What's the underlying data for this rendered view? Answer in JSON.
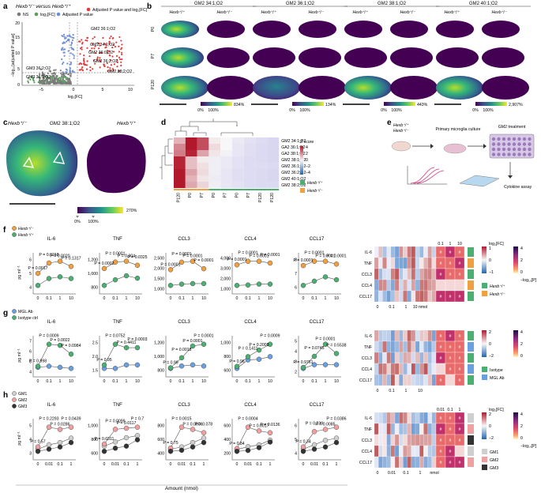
{
  "panel_letters": [
    "a",
    "b",
    "c",
    "d",
    "e",
    "f",
    "g",
    "h"
  ],
  "panel_a": {
    "title": "Hexb⁺/⁻ versus Hexb⁺/⁺",
    "legend": [
      "NS",
      "log₂[FC]",
      "Adjusted P value",
      "Adjusted P value and log₂[FC]"
    ],
    "ylabel": "−log₁₀[adjusted P value]",
    "xlabel": "log₂[FC]",
    "x_ticks": [
      "−5",
      "0",
      "5",
      "10"
    ],
    "y_ticks": [
      "0",
      "5",
      "10",
      "15",
      "20"
    ],
    "annotations": [
      "GM2 36:1;O2",
      "GM2 34:1;O2",
      "GM2 36:0;O2",
      "GM2 36:2;O2",
      "GM2 38:2;O2",
      "GM3 36:2;O2",
      "GM3 36:1;O2"
    ],
    "colors": {
      "ns": "#7a7a7a",
      "fc": "#5aa05a",
      "p": "#6d8fd6",
      "both": "#e03c3c"
    }
  },
  "panel_b": {
    "columns": [
      "GM2 34:1;O2",
      "GM2 36:1;O2",
      "GM2 38:1;O2",
      "GM2 40:1;O2"
    ],
    "genotypes": [
      "Hexb⁺/⁺",
      "Hexb⁺/⁻"
    ],
    "rows": [
      "P0",
      "P7",
      "P120"
    ],
    "scale_min": [
      "0%",
      "0%",
      "0%",
      "0%"
    ],
    "scale_max": [
      "834%",
      "134%",
      "443%",
      "2,907%"
    ],
    "scale_mid": [
      "100%",
      "100%",
      "100%",
      "100%"
    ]
  },
  "panel_c": {
    "title": "GM2 38:1;O2",
    "genotypes": [
      "Hexb⁺/⁻",
      "Hexb⁺/⁺"
    ],
    "scale": [
      "0%",
      "100%",
      "270%"
    ]
  },
  "panel_d": {
    "rows": [
      "GM2 34:1;O2",
      "GA2 36:1;O2",
      "GA2 38:1;O2",
      "GM2 38:1;O2",
      "GM2 36:1;O2",
      "GM2 36:2;O2",
      "GM2 40:1;O2",
      "GM2 38:2;O2"
    ],
    "columns": [
      "P120",
      "P0",
      "P7",
      "P0",
      "P7",
      "P0",
      "P7",
      "P120",
      "P120"
    ],
    "col_labels_shown": [
      "P120",
      "P0",
      "P7",
      "P0",
      "P7",
      "P0",
      "P7",
      "P120",
      "P120"
    ],
    "zscore_label": "Z score",
    "zscore_ticks": [
      "4",
      "2",
      "0",
      "−2",
      "−4"
    ],
    "legend": [
      "Hexb⁺/⁺",
      "Hexb⁺/⁻"
    ],
    "values": [
      [
        1.2,
        4.0,
        3.0,
        0.2,
        0.0,
        -0.5,
        -0.8,
        -1.0,
        -1.2
      ],
      [
        2.0,
        4.0,
        3.0,
        0.5,
        0.0,
        -0.6,
        -0.9,
        -1.1,
        -1.2
      ],
      [
        2.2,
        3.8,
        1.5,
        0.3,
        -0.2,
        -0.6,
        -0.9,
        -1.1,
        -1.2
      ],
      [
        3.8,
        1.0,
        0.2,
        -0.3,
        -0.5,
        -0.8,
        -1.0,
        -1.1,
        -1.2
      ],
      [
        3.8,
        1.0,
        0.4,
        -0.3,
        -0.5,
        -0.8,
        -1.0,
        -1.0,
        -1.1
      ],
      [
        4.0,
        1.5,
        0.5,
        -0.3,
        -0.6,
        -0.9,
        -1.0,
        -1.1,
        -1.2
      ],
      [
        4.0,
        1.2,
        0.3,
        -0.4,
        -0.6,
        -0.9,
        -1.0,
        -1.1,
        -1.2
      ],
      [
        4.0,
        1.4,
        0.6,
        -0.3,
        -0.6,
        -0.8,
        -1.0,
        -1.1,
        -1.1
      ]
    ]
  },
  "panel_e": {
    "genotypes": [
      "Hexb⁺/⁺",
      "Hexb⁺/⁻"
    ],
    "steps": [
      "Primary microglia culture",
      "GM2 treatment",
      "Cytokine assay"
    ]
  },
  "panel_f": {
    "legend": [
      "Hexb⁺/⁻",
      "Hexb⁺/⁺"
    ],
    "ylabel": "pg ml⁻¹",
    "x_ticks": [
      "0",
      "0.1",
      "1",
      "10"
    ],
    "plots": [
      {
        "title": "IL-6",
        "y_ticks": [
          "4",
          "5",
          "6"
        ],
        "p_values": [
          "P = 0.0017",
          "P = 0.0158",
          "P = 0.0020",
          "P = 0.1317"
        ]
      },
      {
        "title": "TNF",
        "y_ticks": [
          "800",
          "1,000",
          "1,200"
        ],
        "p_values": [
          "P = 0.0002",
          "P = 0.0001",
          "P = 0.004",
          "P = 0.0325"
        ]
      },
      {
        "title": "CCL3",
        "y_ticks": [
          "1,000",
          "1,500",
          "2,000",
          "2,500"
        ],
        "p_values": [
          "P = 0.0001",
          "P = 0.0001",
          "P = 0.0001",
          "P = 0.0001"
        ]
      },
      {
        "title": "CCL4",
        "y_ticks": [
          "1,000",
          "2,000",
          "3,000",
          "4,000"
        ],
        "p_values": [
          "P = 0.0001",
          "P = 0.0001",
          "P = 0.0001",
          "P = 0.0001"
        ]
      },
      {
        "title": "CCL17",
        "y_ticks": [
          "6",
          "7",
          "8"
        ],
        "p_values": [
          "P = 0.0001",
          "P = 0.0001",
          "P = 0.0001",
          "P = 0.0001"
        ]
      }
    ]
  },
  "panel_g": {
    "legend": [
      "MGL Ab",
      "Isotype ctrl"
    ],
    "ylabel": "pg ml⁻¹",
    "x_ticks": [
      "0",
      "0.1",
      "1",
      "10"
    ],
    "plots": [
      {
        "title": "IL-6",
        "y_ticks": [
          "4",
          "5",
          "6",
          "7"
        ],
        "p_values": [
          "P = 0.998",
          "P = 0.0009",
          "P = 0.0022",
          "P = 0.0984"
        ]
      },
      {
        "title": "TNF",
        "y_ticks": [
          "1.5",
          "2.0",
          "2.5"
        ],
        "p_values": [
          "P = 0.95",
          "P = 0.0752",
          "P = 0.4411",
          "P = 0.0003"
        ]
      },
      {
        "title": "CCL3",
        "y_ticks": [
          "800",
          "1,000",
          "1,200"
        ],
        "p_values": [
          "P = 0.99",
          "P = 0.0018",
          "P = 0.0001",
          "P = 0.0001"
        ]
      },
      {
        "title": "CCL4",
        "y_ticks": [
          "600",
          "800",
          "1,000"
        ],
        "p_values": [
          "P = 0.96",
          "P = 0.1411",
          "P = 0.2008",
          "P = 0.0009"
        ]
      },
      {
        "title": "CCL17",
        "y_ticks": [
          "2",
          "3",
          "4",
          "5"
        ],
        "p_values": [
          "P = 0.9761",
          "P = 0.0745",
          "P = 0.0001",
          "P = 0.5538"
        ]
      }
    ]
  },
  "panel_h": {
    "legend": [
      "GM1",
      "GM2",
      "GM3"
    ],
    "ylabel": "pg ml⁻¹",
    "x_ticks": [
      "0",
      "0.01",
      "0.1",
      "1"
    ],
    "xlabel": "Amount (nmol)",
    "plots": [
      {
        "title": "IL-6",
        "y_ticks": [
          "3",
          "4",
          "5"
        ],
        "p_values": [
          "P = 0.57",
          "P = 0.2293",
          "P = 0.0286",
          "P = 0.0439"
        ]
      },
      {
        "title": "TNF",
        "y_ticks": [
          "600",
          "800",
          "1,000"
        ],
        "p_values": [
          "P = 0.0311",
          "P = 0.0099",
          "P = 0.0117",
          "P = 0.7"
        ]
      },
      {
        "title": "CCL3",
        "y_ticks": [
          "400",
          "600",
          "800"
        ],
        "p_values": [
          "P = 0.75",
          "P = 0.0015",
          "P = 0.0006",
          "P = 0.078"
        ]
      },
      {
        "title": "CCL4",
        "y_ticks": [
          "200",
          "400",
          "600"
        ],
        "p_values": [
          "P = 0.84",
          "P = 0.0004",
          "P = 0.0017",
          "P = 0.0136"
        ]
      },
      {
        "title": "CCL17",
        "y_ticks": [
          "4",
          "5",
          "6"
        ],
        "p_values": [
          "P = 0.34",
          "P = 0.239",
          "P = 0.0085",
          "P = 0.0386"
        ]
      }
    ]
  },
  "heatmap_f": {
    "rows": [
      "IL-6",
      "TNF",
      "CCL3",
      "CCL4",
      "CCL17"
    ],
    "col_labels": [
      "0.1",
      "1",
      "10"
    ],
    "x_ticks": [
      "0",
      "0.1",
      "1",
      "10 nmol"
    ],
    "fc_label": "log₂[FC]",
    "fc_ticks": [
      "1",
      "0",
      "−1"
    ],
    "p_label": "−log₁₀[P]",
    "p_ticks": [
      "4",
      "2",
      "0"
    ],
    "legend": [
      "Hexb⁺/⁺",
      "Hexb⁺/⁻"
    ]
  },
  "heatmap_g": {
    "rows": [
      "IL-6",
      "TNF",
      "CCL3",
      "CCL4",
      "CCL17"
    ],
    "x_ticks": [
      "0",
      "0.1",
      "1",
      "10"
    ],
    "fc_ticks": [
      "2",
      "0",
      "−2"
    ],
    "p_ticks": [
      "4",
      "2",
      "0"
    ],
    "legend": [
      "Isotype",
      "MGL Ab"
    ]
  },
  "heatmap_h": {
    "rows": [
      "IL-6",
      "TNF",
      "CCL3",
      "CCL4",
      "CCL17"
    ],
    "col_labels": [
      "0.01",
      "0.1",
      "1"
    ],
    "x_ticks": [
      "0",
      "0.01",
      "0.1",
      "1",
      "nmol"
    ],
    "fc_label": "log₂[FC]",
    "fc_ticks": [
      "2",
      "0",
      "−2"
    ],
    "p_label": "−log₁₀[P]",
    "p_ticks": [
      "4",
      "2",
      "0"
    ],
    "legend": [
      "GM1",
      "GM2",
      "GM3"
    ]
  },
  "chart_data": [
    {
      "type": "line",
      "panel": "f",
      "title": "IL-6",
      "x": [
        0,
        0.1,
        1,
        10
      ],
      "series": [
        {
          "name": "Hexb⁺/⁻",
          "values": [
            4.3,
            4.9,
            5.0,
            4.7
          ]
        },
        {
          "name": "Hexb⁺/⁺",
          "values": [
            3.6,
            4.0,
            4.1,
            4.0
          ]
        }
      ]
    },
    {
      "type": "line",
      "panel": "f",
      "title": "TNF",
      "x": [
        0,
        0.1,
        1,
        10
      ],
      "series": [
        {
          "name": "Hexb⁺/⁻",
          "values": [
            1050,
            1130,
            1140,
            1090
          ]
        },
        {
          "name": "Hexb⁺/⁺",
          "values": [
            840,
            910,
            960,
            930
          ]
        }
      ]
    },
    {
      "type": "line",
      "panel": "f",
      "title": "CCL3",
      "x": [
        0,
        0.1,
        1,
        10
      ],
      "series": [
        {
          "name": "Hexb⁺/⁻",
          "values": [
            1900,
            2300,
            2350,
            1950
          ]
        },
        {
          "name": "Hexb⁺/⁺",
          "values": [
            1050,
            1120,
            1150,
            1150
          ]
        }
      ]
    },
    {
      "type": "line",
      "panel": "f",
      "title": "CCL4",
      "x": [
        0,
        0.1,
        1,
        10
      ],
      "series": [
        {
          "name": "Hexb⁺/⁻",
          "values": [
            3600,
            4000,
            4000,
            3800
          ]
        },
        {
          "name": "Hexb⁺/⁺",
          "values": [
            1300,
            1350,
            1450,
            1450
          ]
        }
      ]
    },
    {
      "type": "line",
      "panel": "f",
      "title": "CCL17",
      "x": [
        0,
        0.1,
        1,
        10
      ],
      "series": [
        {
          "name": "Hexb⁺/⁻",
          "values": [
            7.6,
            7.9,
            7.9,
            7.7
          ]
        },
        {
          "name": "Hexb⁺/⁺",
          "values": [
            6.2,
            6.5,
            6.8,
            6.6
          ]
        }
      ]
    },
    {
      "type": "line",
      "panel": "g",
      "title": "IL-6",
      "x": [
        0,
        0.1,
        1,
        10
      ],
      "series": [
        {
          "name": "MGL Ab",
          "values": [
            3.9,
            4.0,
            3.9,
            3.8
          ]
        },
        {
          "name": "Isotype ctrl",
          "values": [
            4.0,
            6.0,
            5.9,
            5.1
          ]
        }
      ]
    },
    {
      "type": "line",
      "panel": "g",
      "title": "TNF",
      "x": [
        0,
        0.1,
        1,
        10
      ],
      "series": [
        {
          "name": "MGL Ab",
          "values": [
            1.9,
            1.9,
            2.0,
            2.0
          ]
        },
        {
          "name": "Isotype ctrl",
          "values": [
            2.0,
            2.6,
            2.5,
            2.5
          ]
        }
      ]
    },
    {
      "type": "line",
      "panel": "g",
      "title": "CCL3",
      "x": [
        0,
        0.1,
        1,
        10
      ],
      "series": [
        {
          "name": "MGL Ab",
          "values": [
            820,
            860,
            880,
            860
          ]
        },
        {
          "name": "Isotype ctrl",
          "values": [
            830,
            1000,
            1200,
            1230
          ]
        }
      ]
    },
    {
      "type": "line",
      "panel": "g",
      "title": "CCL4",
      "x": [
        0,
        0.1,
        1,
        10
      ],
      "series": [
        {
          "name": "MGL Ab",
          "values": [
            620,
            750,
            760,
            800
          ]
        },
        {
          "name": "Isotype ctrl",
          "values": [
            650,
            800,
            900,
            990
          ]
        }
      ]
    },
    {
      "type": "line",
      "panel": "g",
      "title": "CCL17",
      "x": [
        0,
        0.1,
        1,
        10
      ],
      "series": [
        {
          "name": "MGL Ab",
          "values": [
            2.2,
            2.6,
            2.6,
            2.6
          ]
        },
        {
          "name": "Isotype ctrl",
          "values": [
            2.3,
            3.5,
            4.8,
            3.8
          ]
        }
      ]
    },
    {
      "type": "line",
      "panel": "h",
      "title": "IL-6",
      "x": [
        0,
        0.01,
        0.1,
        1
      ],
      "series": [
        {
          "name": "GM1",
          "values": [
            3.9,
            4.1,
            4.2,
            4.4
          ]
        },
        {
          "name": "GM2",
          "values": [
            4.0,
            4.9,
            4.8,
            4.9
          ]
        },
        {
          "name": "GM3",
          "values": [
            3.8,
            3.9,
            4.0,
            4.2
          ]
        }
      ]
    },
    {
      "type": "line",
      "panel": "h",
      "title": "TNF",
      "x": [
        0,
        0.01,
        0.1,
        1
      ],
      "series": [
        {
          "name": "GM1",
          "values": [
            700,
            740,
            780,
            800
          ]
        },
        {
          "name": "GM2",
          "values": [
            720,
            860,
            870,
            880
          ]
        },
        {
          "name": "GM3",
          "values": [
            650,
            680,
            700,
            760
          ]
        }
      ]
    },
    {
      "type": "line",
      "panel": "h",
      "title": "CCL3",
      "x": [
        0,
        0.01,
        0.1,
        1
      ],
      "series": [
        {
          "name": "GM1",
          "values": [
            500,
            520,
            560,
            600
          ]
        },
        {
          "name": "GM2",
          "values": [
            510,
            700,
            680,
            650
          ]
        },
        {
          "name": "GM3",
          "values": [
            480,
            490,
            520,
            560
          ]
        }
      ]
    },
    {
      "type": "line",
      "panel": "h",
      "title": "CCL4",
      "x": [
        0,
        0.01,
        0.1,
        1
      ],
      "series": [
        {
          "name": "GM1",
          "values": [
            300,
            330,
            350,
            400
          ]
        },
        {
          "name": "GM2",
          "values": [
            310,
            540,
            500,
            480
          ]
        },
        {
          "name": "GM3",
          "values": [
            280,
            290,
            320,
            380
          ]
        }
      ]
    },
    {
      "type": "line",
      "panel": "h",
      "title": "CCL17",
      "x": [
        0,
        0.01,
        0.1,
        1
      ],
      "series": [
        {
          "name": "GM1",
          "values": [
            4.5,
            4.7,
            4.9,
            5.0
          ]
        },
        {
          "name": "GM2",
          "values": [
            4.6,
            5.3,
            5.4,
            5.5
          ]
        },
        {
          "name": "GM3",
          "values": [
            4.4,
            4.5,
            4.6,
            4.8
          ]
        }
      ]
    }
  ]
}
